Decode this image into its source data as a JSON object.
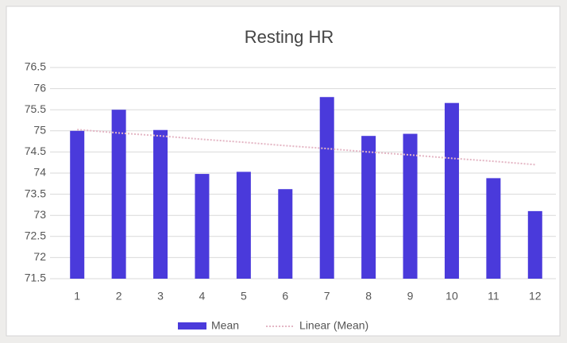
{
  "chart_data": {
    "type": "bar",
    "title": "Resting HR",
    "categories": [
      "1",
      "2",
      "3",
      "4",
      "5",
      "6",
      "7",
      "8",
      "9",
      "10",
      "11",
      "12"
    ],
    "series": [
      {
        "name": "Mean",
        "color": "#4a3adb",
        "values": [
          75.0,
          75.5,
          75.02,
          73.98,
          74.03,
          73.62,
          75.8,
          74.88,
          74.93,
          75.66,
          73.88,
          73.1
        ]
      },
      {
        "name": "Linear (Mean)",
        "color": "#e4b6c4",
        "type": "line",
        "values": [
          75.03,
          74.95,
          74.88,
          74.8,
          74.73,
          74.65,
          74.58,
          74.5,
          74.43,
          74.35,
          74.28,
          74.2
        ]
      }
    ],
    "ylim": [
      71.5,
      76.5
    ],
    "yticks": [
      71.5,
      72,
      72.5,
      73,
      73.5,
      74,
      74.5,
      75,
      75.5,
      76,
      76.5
    ],
    "grid": true
  }
}
